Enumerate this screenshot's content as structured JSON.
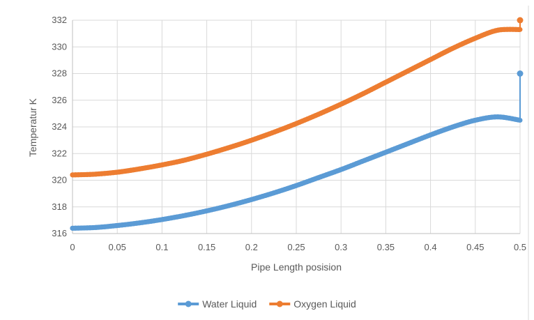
{
  "chart_data": {
    "type": "line",
    "title": "",
    "xlabel": "Pipe Length posision",
    "ylabel": "Temperatur K",
    "xlim": [
      0,
      0.5
    ],
    "ylim": [
      316,
      332
    ],
    "xticks": [
      "0",
      "0.05",
      "0.1",
      "0.15",
      "0.2",
      "0.25",
      "0.3",
      "0.35",
      "0.4",
      "0.45",
      "0.5"
    ],
    "yticks": [
      "316",
      "318",
      "320",
      "322",
      "324",
      "326",
      "328",
      "330",
      "332"
    ],
    "grid": "major",
    "legend_position": "bottom",
    "x": [
      0,
      0.025,
      0.05,
      0.075,
      0.1,
      0.125,
      0.15,
      0.175,
      0.2,
      0.225,
      0.25,
      0.275,
      0.3,
      0.325,
      0.35,
      0.375,
      0.4,
      0.425,
      0.45,
      0.475,
      0.5
    ],
    "series": [
      {
        "name": "Water Liquid",
        "color": "#5b9bd5",
        "values": [
          316.4,
          316.45,
          316.6,
          316.8,
          317.05,
          317.35,
          317.7,
          318.1,
          318.55,
          319.05,
          319.6,
          320.2,
          320.8,
          321.45,
          322.1,
          322.75,
          323.4,
          324.0,
          324.5,
          324.75,
          324.5
        ],
        "end_point": [
          0.5,
          328.0
        ]
      },
      {
        "name": "Oxygen Liquid",
        "color": "#ed7d31",
        "values": [
          320.4,
          320.45,
          320.6,
          320.85,
          321.15,
          321.5,
          321.95,
          322.45,
          323.0,
          323.6,
          324.25,
          324.95,
          325.7,
          326.5,
          327.35,
          328.2,
          329.05,
          329.9,
          330.65,
          331.25,
          331.3
        ],
        "end_point": [
          0.5,
          332.0
        ]
      }
    ]
  }
}
